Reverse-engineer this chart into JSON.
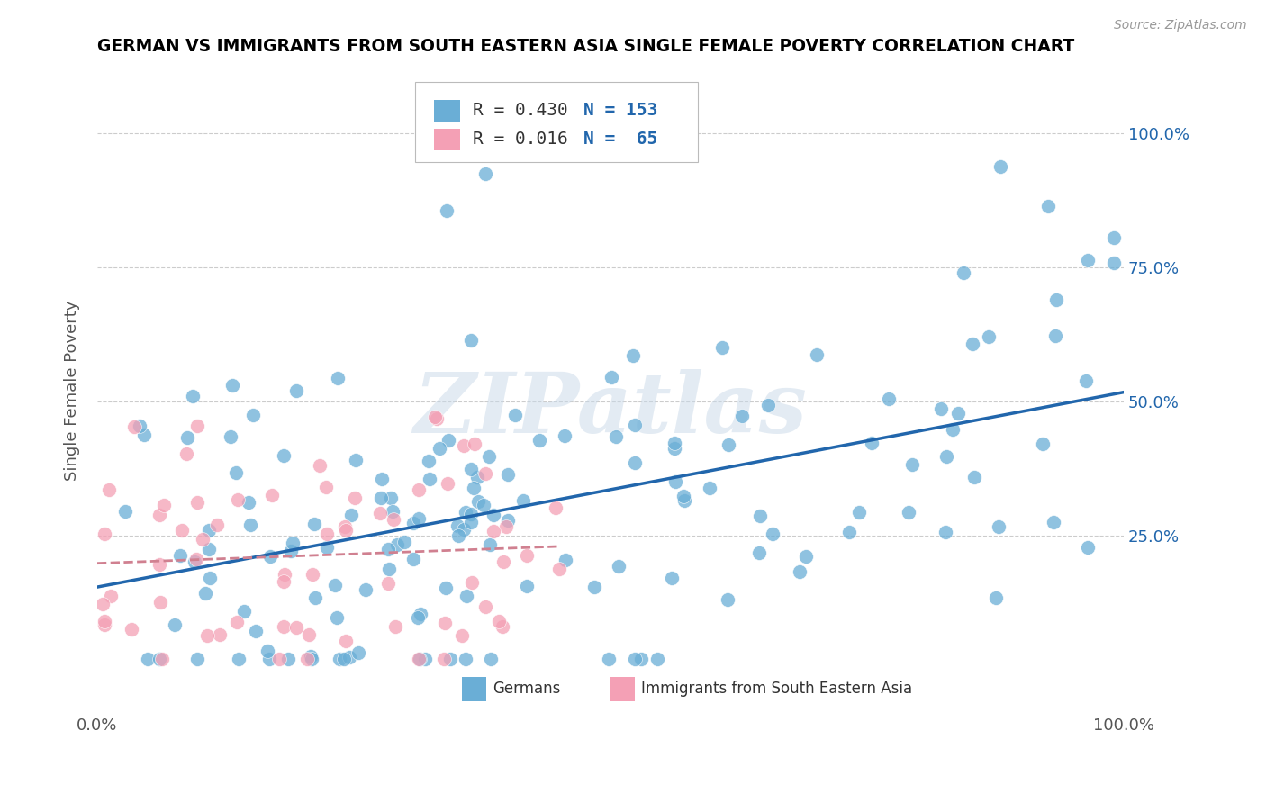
{
  "title": "GERMAN VS IMMIGRANTS FROM SOUTH EASTERN ASIA SINGLE FEMALE POVERTY CORRELATION CHART",
  "source": "Source: ZipAtlas.com",
  "ylabel": "Single Female Poverty",
  "legend_R": [
    "R = 0.430",
    "R = 0.016"
  ],
  "legend_N": [
    "N = 153",
    "N =  65"
  ],
  "legend_labels": [
    "Germans",
    "Immigrants from South Eastern Asia"
  ],
  "blue_color": "#6aaed6",
  "pink_color": "#f4a0b5",
  "blue_line_color": "#2166ac",
  "pink_line_color": "#d08090",
  "background_color": "#ffffff",
  "grid_color": "#cccccc",
  "watermark_text": "ZIPatlas",
  "R_blue": 0.43,
  "N_blue": 153,
  "R_pink": 0.016,
  "N_pink": 65,
  "xlim": [
    0.0,
    1.0
  ],
  "ylim": [
    -0.08,
    1.12
  ],
  "seed_blue": 42,
  "seed_pink": 7
}
